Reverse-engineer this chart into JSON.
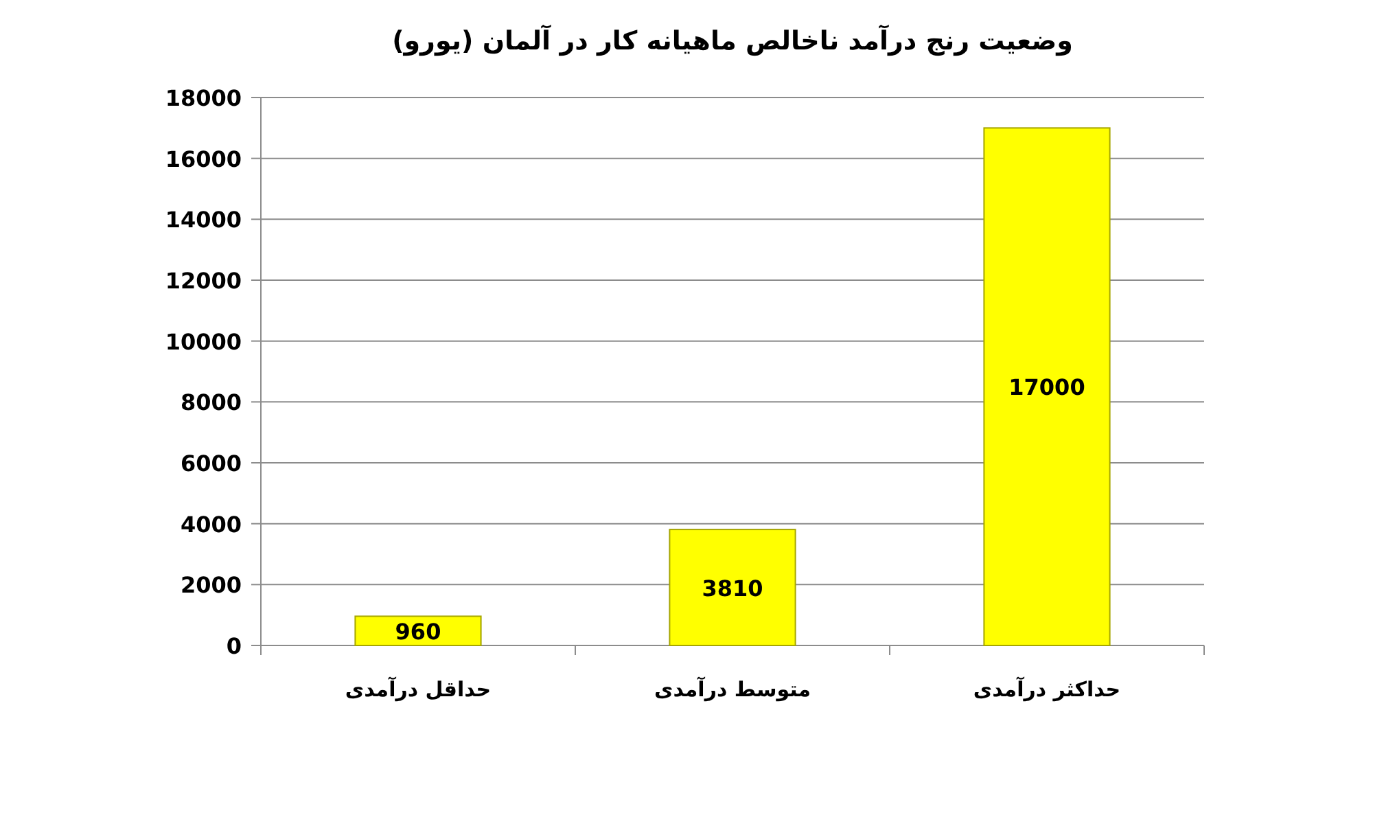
{
  "chart_data": {
    "type": "bar",
    "title": "وضعیت رنج درآمد ناخالص ماهیانه کار در آلمان (یورو)",
    "categories": [
      "حداقل درآمدی",
      "متوسط درآمدی",
      "حداکثر درآمدی"
    ],
    "values": [
      960,
      3810,
      17000
    ],
    "color": "#ffff00",
    "ylim": [
      0,
      18000
    ],
    "yticks": [
      0,
      2000,
      4000,
      6000,
      8000,
      10000,
      12000,
      14000,
      16000,
      18000
    ],
    "grid": "y",
    "data_labels": true
  }
}
